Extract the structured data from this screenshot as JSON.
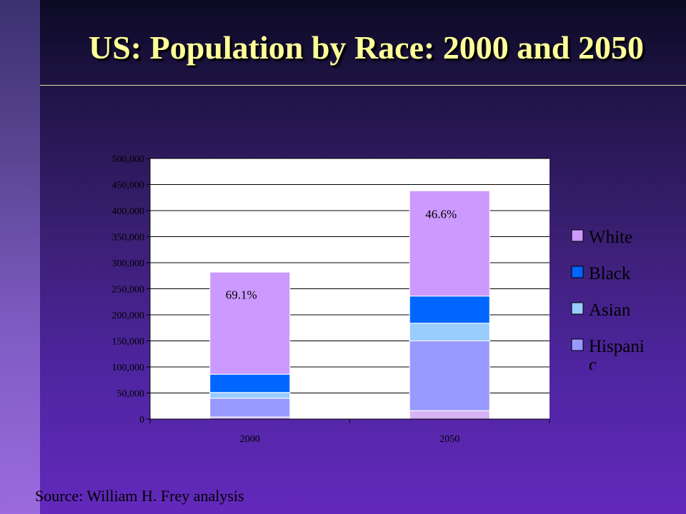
{
  "slide": {
    "title": "US: Population by Race: 2000 and 2050",
    "source": "Source: William H. Frey analysis"
  },
  "chart_data": {
    "type": "bar",
    "stacked": true,
    "categories": [
      "2000",
      "2050"
    ],
    "ylim": [
      0,
      500000
    ],
    "yticks": [
      "0",
      "50,000",
      "100,000",
      "150,000",
      "200,000",
      "250,000",
      "300,000",
      "350,000",
      "400,000",
      "450,000",
      "500,000"
    ],
    "grid": true,
    "legend_position": "right",
    "series": [
      {
        "name": "",
        "color": "#d6b4f4",
        "values": [
          4000,
          16000
        ]
      },
      {
        "name": "Hispani c",
        "color": "#9999ff",
        "values": [
          36000,
          134000
        ]
      },
      {
        "name": "Asian",
        "color": "#99ccff",
        "values": [
          11000,
          34000
        ]
      },
      {
        "name": "Black",
        "color": "#0066ff",
        "values": [
          35000,
          52000
        ]
      },
      {
        "name": "White",
        "color": "#cc99ff",
        "values": [
          196000,
          202000
        ]
      }
    ],
    "annotations": [
      {
        "category": "2000",
        "series": "White",
        "text": "69.1%"
      },
      {
        "category": "2050",
        "series": "White",
        "text": "46.6%"
      }
    ],
    "legend": [
      {
        "label": "White",
        "color": "#cc99ff"
      },
      {
        "label": "Black",
        "color": "#0066ff"
      },
      {
        "label": "Asian",
        "color": "#99ccff"
      },
      {
        "label": "Hispani",
        "label_cont": "c",
        "color": "#9999ff"
      }
    ]
  }
}
